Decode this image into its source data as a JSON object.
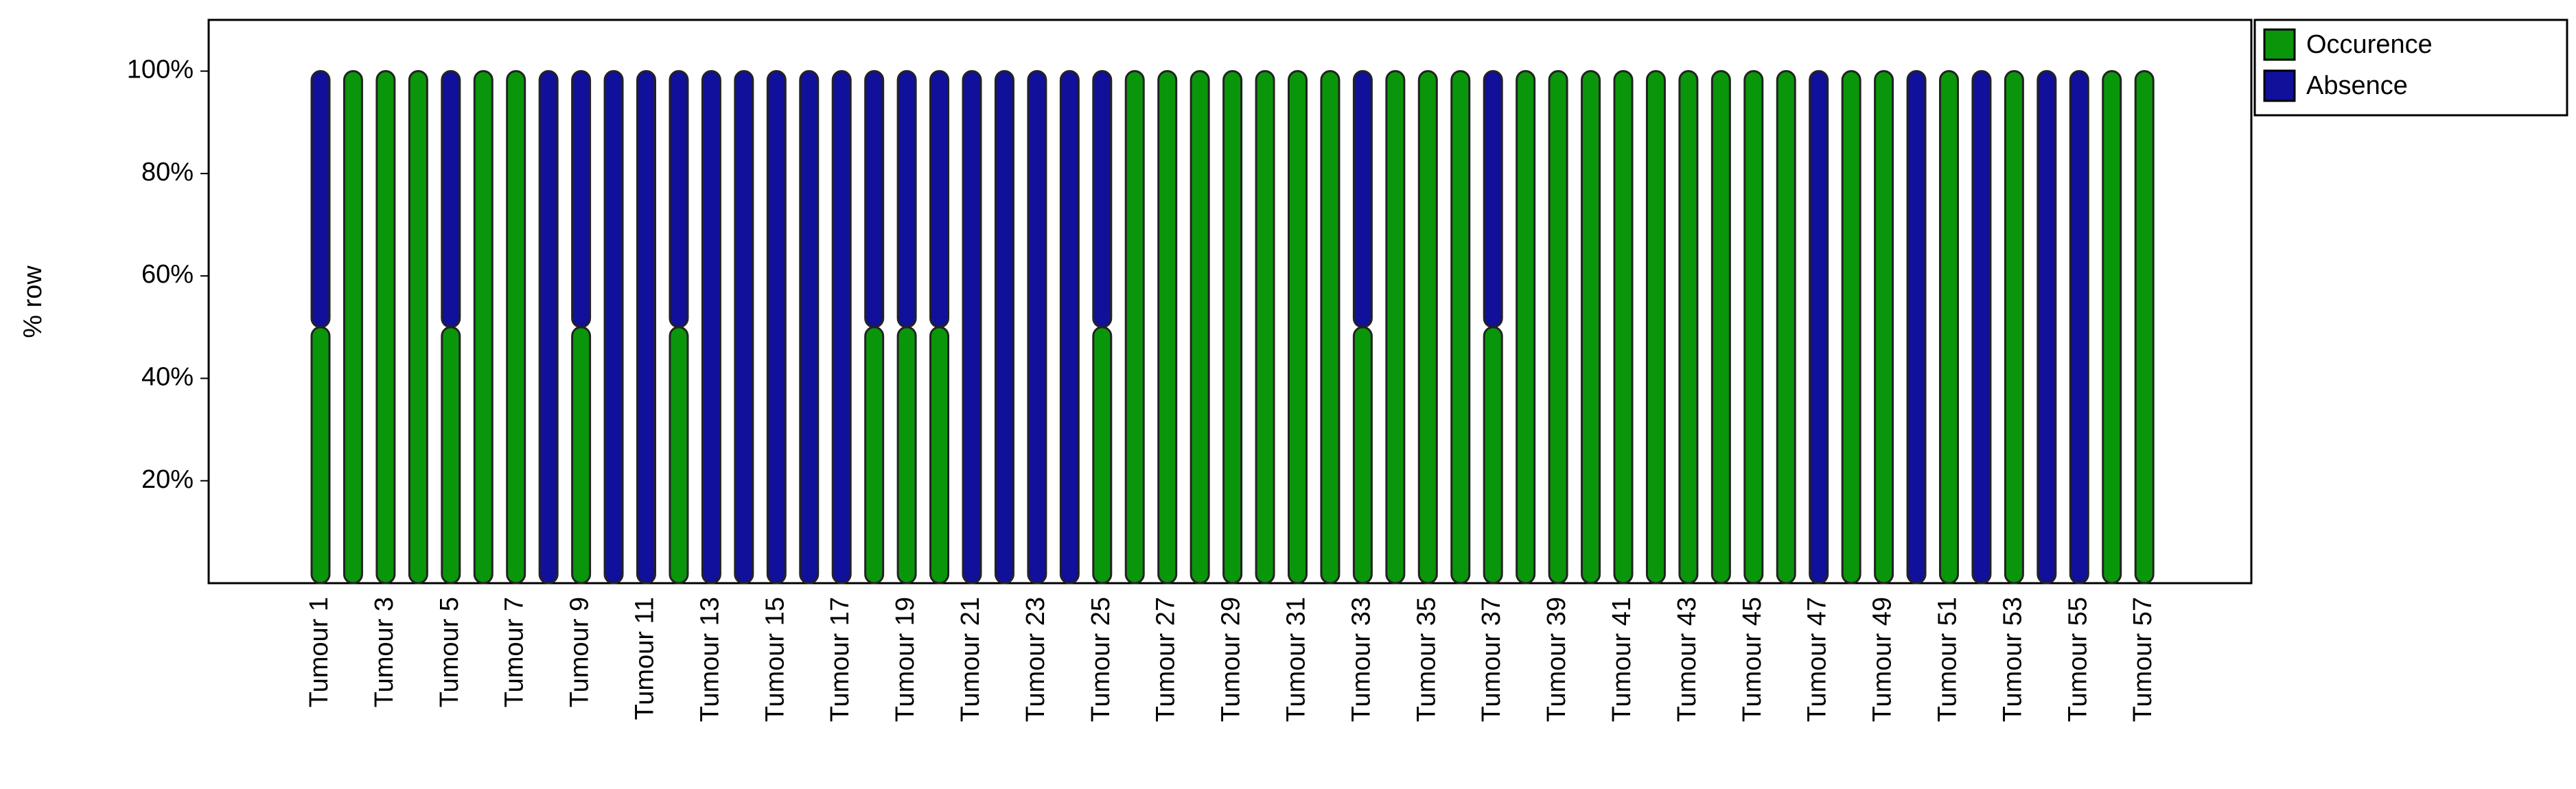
{
  "chart_data": {
    "type": "stacked_bar",
    "y_label": "% row",
    "categories": [
      "Tumour 1",
      null,
      "Tumour 3",
      null,
      "Tumour 5",
      null,
      "Tumour 7",
      null,
      "Tumour 9",
      null,
      "Tumour 11",
      null,
      "Tumour 13",
      null,
      "Tumour 15",
      null,
      "Tumour 17",
      null,
      "Tumour 19",
      null,
      "Tumour 21",
      null,
      "Tumour 23",
      null,
      "Tumour 25",
      null,
      "Tumour 27",
      null,
      "Tumour 29",
      null,
      "Tumour 31",
      null,
      "Tumour 33",
      null,
      "Tumour 35",
      null,
      "Tumour 37",
      null,
      "Tumour 39",
      null,
      "Tumour 41",
      null,
      "Tumour 43",
      null,
      "Tumour 45",
      null,
      "Tumour 47",
      null,
      "Tumour 49",
      null,
      "Tumour 51",
      null,
      "Tumour 53",
      null,
      "Tumour 55",
      null,
      "Tumour 57"
    ],
    "series": [
      {
        "name": "Occurence",
        "color": "#0a960a",
        "values": [
          50,
          100,
          100,
          100,
          50,
          100,
          100,
          0,
          50,
          0,
          0,
          50,
          0,
          0,
          0,
          0,
          0,
          50,
          50,
          50,
          0,
          0,
          0,
          0,
          50,
          100,
          100,
          100,
          100,
          100,
          100,
          100,
          50,
          100,
          100,
          100,
          50,
          100,
          100,
          100,
          100,
          100,
          100,
          100,
          100,
          100,
          0,
          100,
          100,
          0,
          100,
          0,
          100,
          0,
          0,
          100,
          100
        ]
      },
      {
        "name": "Absence",
        "color": "#10109a",
        "values": [
          50,
          0,
          0,
          0,
          50,
          0,
          0,
          100,
          50,
          100,
          100,
          50,
          100,
          100,
          100,
          100,
          100,
          50,
          50,
          50,
          100,
          100,
          100,
          100,
          50,
          0,
          0,
          0,
          0,
          0,
          0,
          0,
          50,
          0,
          0,
          0,
          50,
          0,
          0,
          0,
          0,
          0,
          0,
          0,
          0,
          0,
          100,
          0,
          0,
          100,
          0,
          100,
          0,
          100,
          100,
          0,
          0
        ]
      }
    ],
    "ylim": [
      0,
      110
    ],
    "yticks": [
      {
        "value": 20,
        "label": "20%"
      },
      {
        "value": 40,
        "label": "40%"
      },
      {
        "value": 60,
        "label": "60%"
      },
      {
        "value": 80,
        "label": "80%"
      },
      {
        "value": 100,
        "label": "100%"
      }
    ],
    "legend": "top-right"
  }
}
